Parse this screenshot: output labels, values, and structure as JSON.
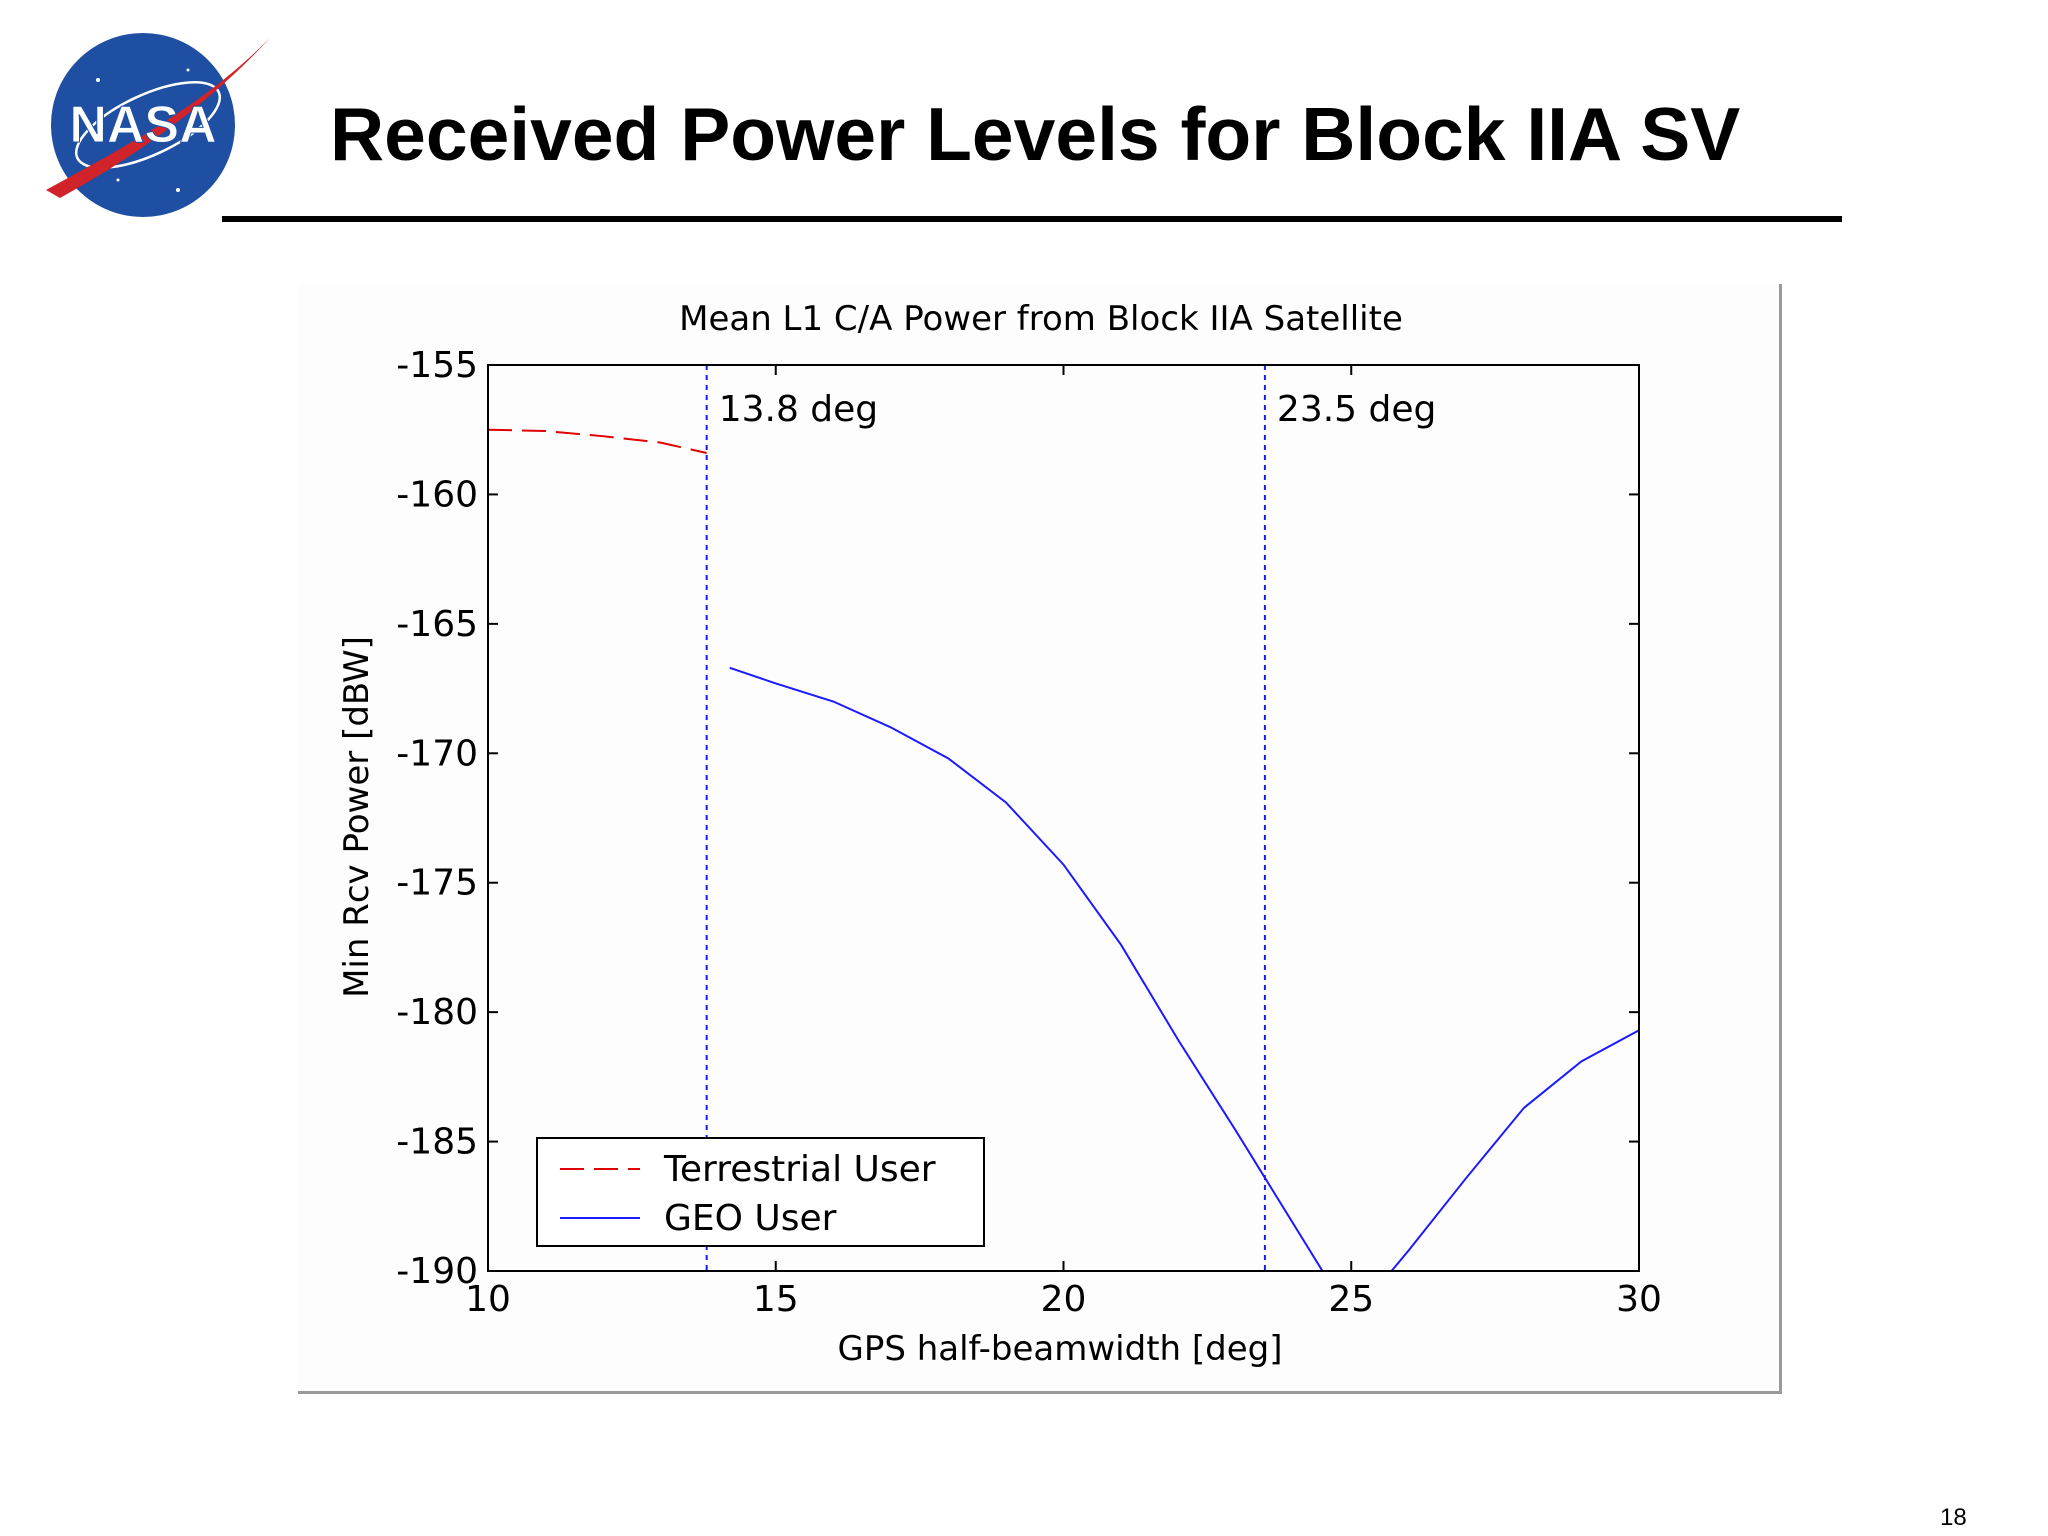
{
  "slide": {
    "title": "Received Power Levels for Block IIA SV",
    "page_number": "18",
    "logo_text": "NASA"
  },
  "colors": {
    "terrestrial": "#e00000",
    "geo": "#1a1aff",
    "marker_lines": "#1a1aff",
    "logo_blue": "#1f4fa3",
    "logo_red": "#d1232a"
  },
  "chart_data": {
    "type": "line",
    "title": "Mean L1 C/A Power from Block IIA Satellite",
    "xlabel": "GPS half-beamwidth [deg]",
    "ylabel": "Min Rcv Power [dBW]",
    "xlim": [
      10,
      30
    ],
    "ylim": [
      -190,
      -155
    ],
    "xticks": [
      10,
      15,
      20,
      25,
      30
    ],
    "yticks": [
      -155,
      -160,
      -165,
      -170,
      -175,
      -180,
      -185,
      -190
    ],
    "grid": false,
    "legend_position": "bottom-left",
    "series": [
      {
        "name": "Terrestrial User",
        "style": "dashed",
        "color": "#e00000",
        "x": [
          10,
          11,
          12,
          13,
          13.8
        ],
        "y": [
          -157.5,
          -157.55,
          -157.75,
          -158.0,
          -158.4
        ]
      },
      {
        "name": "GEO User",
        "style": "solid",
        "color": "#1a1aff",
        "segments": [
          {
            "x": [
              14.2,
              15,
              16,
              17,
              18,
              19,
              20,
              21,
              22,
              23,
              23.5,
              24,
              24.5
            ],
            "y": [
              -166.7,
              -167.3,
              -168.0,
              -169.0,
              -170.2,
              -171.9,
              -174.3,
              -177.4,
              -181.1,
              -184.6,
              -186.4,
              -188.2,
              -190
            ]
          },
          {
            "x": [
              25.7,
              26,
              27,
              28,
              29,
              30
            ],
            "y": [
              -190,
              -189.2,
              -186.4,
              -183.7,
              -181.9,
              -180.7
            ]
          }
        ]
      }
    ],
    "markers": [
      {
        "x": 13.8,
        "label": "13.8 deg"
      },
      {
        "x": 23.5,
        "label": "23.5 deg"
      }
    ]
  }
}
